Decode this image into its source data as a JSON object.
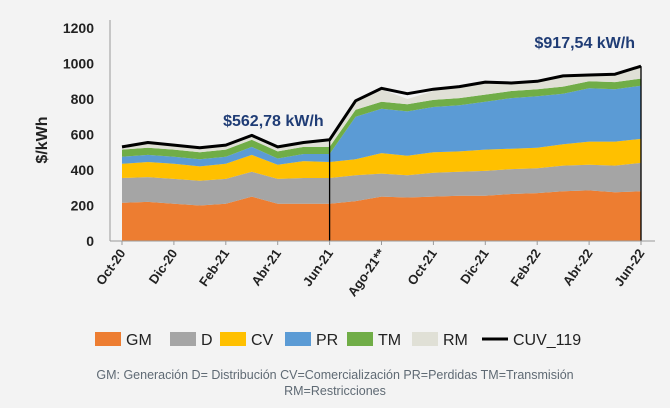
{
  "chart_data": {
    "type": "area",
    "stacked": true,
    "ylabel": "$/kWh",
    "xlabel": "",
    "ylim": [
      0,
      1200
    ],
    "yticks": [
      0,
      200,
      400,
      600,
      800,
      1000,
      1200
    ],
    "x_tick_labels": [
      "Oct-20",
      "Dic-20",
      "Feb-21",
      "Abr-21",
      "Jun-21",
      "Ago-21**",
      "Oct-21",
      "Dic-21",
      "Feb-22",
      "Abr-22",
      "Jun-22"
    ],
    "x_months": [
      "Oct-20",
      "Nov-20",
      "Dic-20",
      "Ene-21",
      "Feb-21",
      "Mar-21",
      "Abr-21",
      "May-21",
      "Jun-21",
      "Jul-21",
      "Ago-21",
      "Sep-21",
      "Oct-21",
      "Nov-21",
      "Dic-21",
      "Ene-22",
      "Feb-22",
      "Mar-22",
      "Abr-22",
      "May-22",
      "Jun-22"
    ],
    "grid": false,
    "legend_position": "bottom",
    "series": [
      {
        "name": "GM",
        "color": "#ed7d31",
        "values": [
          215,
          220,
          210,
          200,
          210,
          250,
          210,
          210,
          210,
          225,
          250,
          245,
          250,
          255,
          255,
          265,
          270,
          280,
          285,
          275,
          280
        ]
      },
      {
        "name": "D",
        "color": "#a5a5a5",
        "values": [
          140,
          140,
          140,
          140,
          140,
          140,
          140,
          145,
          145,
          145,
          130,
          125,
          135,
          135,
          140,
          140,
          140,
          145,
          145,
          150,
          160
        ]
      },
      {
        "name": "CV",
        "color": "#ffc000",
        "values": [
          80,
          85,
          85,
          80,
          85,
          95,
          80,
          95,
          90,
          90,
          115,
          110,
          115,
          115,
          120,
          115,
          115,
          120,
          130,
          135,
          135
        ]
      },
      {
        "name": "PR",
        "color": "#5b9bd5",
        "values": [
          40,
          40,
          40,
          40,
          40,
          45,
          35,
          40,
          45,
          240,
          250,
          250,
          255,
          260,
          270,
          285,
          290,
          285,
          300,
          295,
          300
        ]
      },
      {
        "name": "TM",
        "color": "#70ad47",
        "values": [
          40,
          40,
          40,
          40,
          40,
          40,
          40,
          40,
          40,
          40,
          40,
          40,
          40,
          40,
          40,
          40,
          40,
          40,
          40,
          40,
          40
        ]
      },
      {
        "name": "RM",
        "color": "#e0e0d6",
        "values": [
          15,
          25,
          20,
          20,
          25,
          25,
          25,
          25,
          40,
          50,
          70,
          30,
          50,
          60,
          65,
          45,
          50,
          60,
          35,
          45,
          65
        ]
      }
    ],
    "line_series": {
      "name": "CUV_119",
      "color": "#000000",
      "values": [
        530,
        555,
        540,
        525,
        540,
        595,
        530,
        555,
        570,
        790,
        860,
        830,
        855,
        870,
        895,
        890,
        900,
        930,
        935,
        940,
        985
      ]
    },
    "reference_lines": [
      {
        "x": "Jun-21",
        "label": "$562,78 kW/h"
      },
      {
        "x": "Jun-22",
        "label": "$917,54 kW/h"
      }
    ]
  },
  "footnote": {
    "line1": "GM: Generación D= Distribución CV=Comercialización PR=Perdidas TM=Transmisión",
    "line2": "RM=Restricciones"
  }
}
